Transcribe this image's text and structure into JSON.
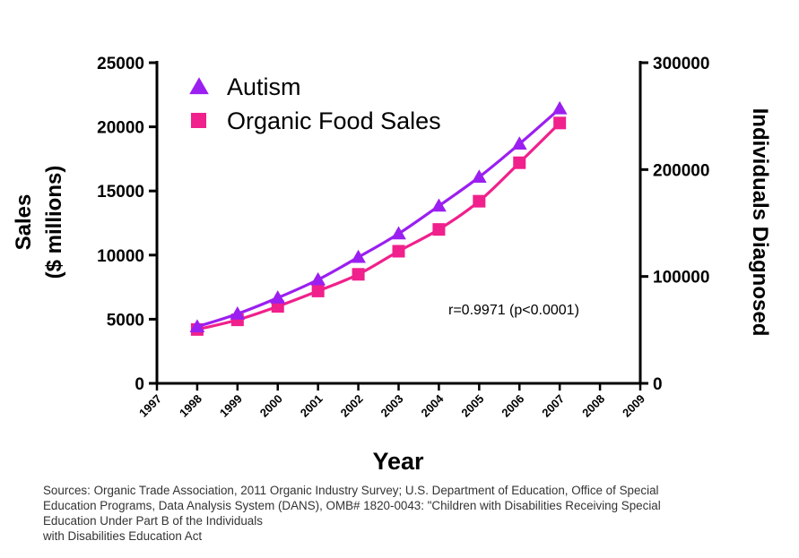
{
  "chart_data": {
    "type": "line",
    "title": "",
    "xlabel": "Year",
    "ylabel_left_line1": "Sales",
    "ylabel_left_line2": "($ millions)",
    "ylabel_right": "Individuals Diagnosed",
    "xlim": [
      1997,
      2009
    ],
    "ylim_left": [
      0,
      25000
    ],
    "ylim_right": [
      0,
      300000
    ],
    "x_ticks": [
      "1997",
      "1998",
      "1999",
      "2000",
      "2001",
      "2002",
      "2003",
      "2004",
      "2005",
      "2006",
      "2007",
      "2008",
      "2009"
    ],
    "y_left_ticks": [
      "0",
      "5000",
      "10000",
      "15000",
      "20000",
      "25000"
    ],
    "y_right_ticks": [
      "0",
      "100000",
      "200000",
      "300000"
    ],
    "legend_position": "top-left",
    "series": [
      {
        "name": "Autism",
        "axis": "right",
        "marker": "triangle",
        "color": "#9b1ff0",
        "x": [
          1998,
          1999,
          2000,
          2001,
          2002,
          2003,
          2004,
          2005,
          2006,
          2007
        ],
        "values": [
          53000,
          65000,
          80000,
          97000,
          118000,
          140000,
          166000,
          193000,
          224000,
          257000
        ]
      },
      {
        "name": "Organic Food Sales",
        "axis": "left",
        "marker": "square",
        "color": "#f0208c",
        "x": [
          1998,
          1999,
          2000,
          2001,
          2002,
          2003,
          2004,
          2005,
          2006,
          2007
        ],
        "values": [
          4200,
          4950,
          6000,
          7200,
          8500,
          10300,
          12000,
          14200,
          17200,
          20300
        ]
      }
    ],
    "annotation": "r=0.9971 (p<0.0001)"
  },
  "sources": [
    "Sources: Organic Trade Association,  2011 Organic Industry Survey; U.S. Department of Education, Office of Special",
    "Education Programs, Data Analysis System (DANS), OMB# 1820-0043: \"Children with Disabilities Receiving Special",
    "Education Under Part B of the Individuals",
    "with Disabilities Education Act"
  ]
}
